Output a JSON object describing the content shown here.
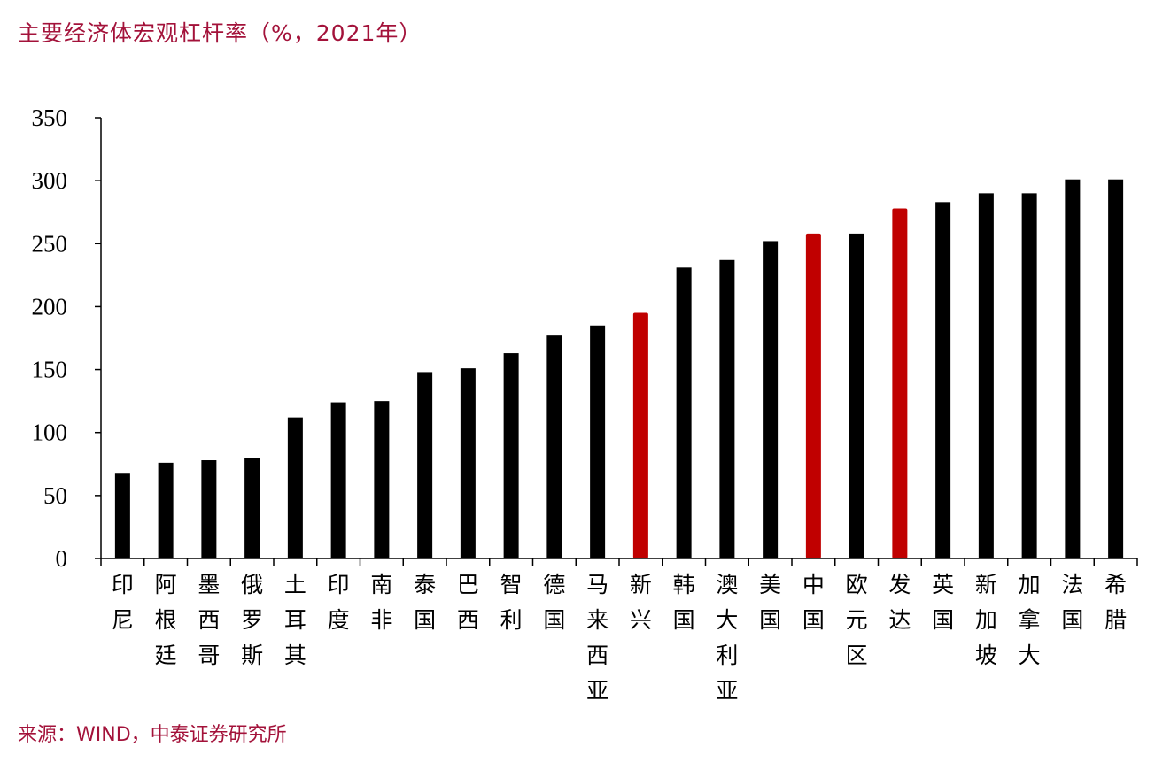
{
  "title": "主要经济体宏观杠杆率（%，2021年）",
  "source": "来源：WIND，中泰证券研究所",
  "colors": {
    "normal": "#000000",
    "highlight": "#c00000",
    "text_accent": "#a3123a"
  },
  "chart_data": {
    "type": "bar",
    "title": "主要经济体宏观杠杆率（%，2021年）",
    "xlabel": "",
    "ylabel": "",
    "ylim": [
      0,
      350
    ],
    "yticks": [
      0,
      50,
      100,
      150,
      200,
      250,
      300,
      350
    ],
    "grid": false,
    "categories": [
      "印尼",
      "阿根廷",
      "墨西哥",
      "俄罗斯",
      "土耳其",
      "印度",
      "南非",
      "泰国",
      "巴西",
      "智利",
      "德国",
      "马来西亚",
      "新兴",
      "韩国",
      "澳大利亚",
      "美国",
      "中国",
      "欧元区",
      "发达",
      "英国",
      "新加坡",
      "加拿大",
      "法国",
      "希腊"
    ],
    "values": [
      68,
      76,
      78,
      80,
      112,
      124,
      125,
      148,
      151,
      163,
      177,
      185,
      195,
      231,
      237,
      252,
      258,
      258,
      278,
      283,
      290,
      290,
      301,
      301
    ],
    "highlighted": [
      "新兴",
      "中国",
      "发达"
    ]
  }
}
